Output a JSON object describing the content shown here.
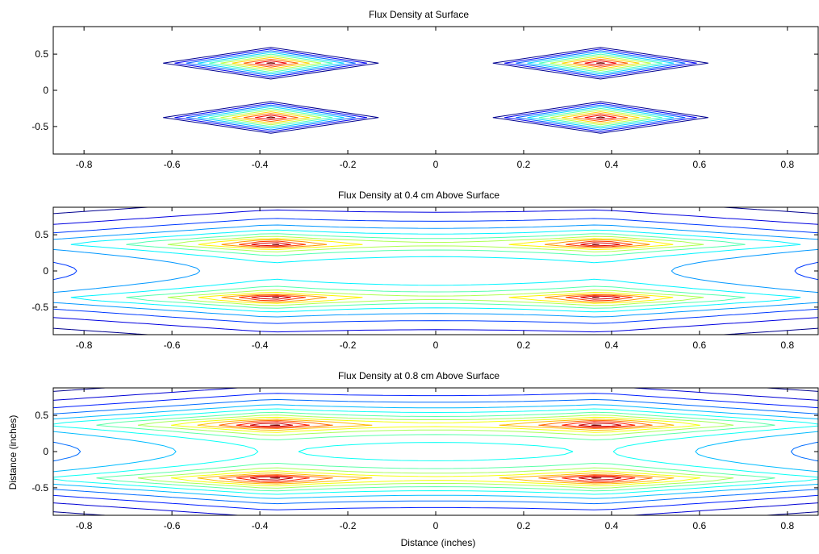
{
  "figure": {
    "xlabel": "Distance (inches)",
    "ylabel": "Distance (inches)"
  },
  "chart_data": [
    {
      "type": "contour",
      "title": "Flux Density at Surface",
      "height_above_surface_cm": 0,
      "xlim": [
        -0.87,
        0.87
      ],
      "ylim": [
        -0.88,
        0.88
      ],
      "xticks": [
        -0.8,
        -0.6,
        -0.4,
        -0.2,
        0,
        0.2,
        0.4,
        0.6,
        0.8
      ],
      "xtick_labels": [
        "-0.8",
        "-0.6",
        "-0.4",
        "-0.2",
        "0",
        "0.2",
        "0.4",
        "0.6",
        "0.8"
      ],
      "yticks": [
        -0.5,
        0,
        0.5
      ],
      "ytick_labels": [
        "-0.5",
        "0",
        "0.5"
      ],
      "sources": [
        [
          -0.375,
          0.375
        ],
        [
          0.375,
          0.375
        ],
        [
          -0.375,
          -0.375
        ],
        [
          0.375,
          -0.375
        ]
      ],
      "levels": 10,
      "outer_contour_half_width": [
        0.245,
        0.23
      ],
      "colormap": [
        "#00008f",
        "#0000ff",
        "#0080ff",
        "#00ffff",
        "#80ff80",
        "#ffff00",
        "#ff8000",
        "#ff0000",
        "#800000"
      ]
    },
    {
      "type": "contour",
      "title": "Flux Density at 0.4 cm Above Surface",
      "height_above_surface_cm": 0.4,
      "xlim": [
        -0.87,
        0.87
      ],
      "ylim": [
        -0.88,
        0.88
      ],
      "xticks": [
        -0.8,
        -0.6,
        -0.4,
        -0.2,
        0,
        0.2,
        0.4,
        0.6,
        0.8
      ],
      "xtick_labels": [
        "-0.8",
        "-0.6",
        "-0.4",
        "-0.2",
        "0",
        "0.2",
        "0.4",
        "0.6",
        "0.8"
      ],
      "yticks": [
        -0.5,
        0,
        0.5
      ],
      "ytick_labels": [
        "-0.5",
        "0",
        "0.5"
      ],
      "sources": [
        [
          -0.375,
          0.375
        ],
        [
          0.375,
          0.375
        ],
        [
          -0.375,
          -0.375
        ],
        [
          0.375,
          -0.375
        ]
      ],
      "levels": 12,
      "colormap": [
        "#00008f",
        "#0000ff",
        "#0080ff",
        "#00ffff",
        "#80ff80",
        "#ffff00",
        "#ff8000",
        "#ff0000",
        "#800000"
      ]
    },
    {
      "type": "contour",
      "title": "Flux Density at 0.8 cm Above Surface",
      "height_above_surface_cm": 0.8,
      "xlim": [
        -0.87,
        0.87
      ],
      "ylim": [
        -0.88,
        0.88
      ],
      "xticks": [
        -0.8,
        -0.6,
        -0.4,
        -0.2,
        0,
        0.2,
        0.4,
        0.6,
        0.8
      ],
      "xtick_labels": [
        "-0.8",
        "-0.6",
        "-0.4",
        "-0.2",
        "0",
        "0.2",
        "0.4",
        "0.6",
        "0.8"
      ],
      "yticks": [
        -0.5,
        0,
        0.5
      ],
      "ytick_labels": [
        "-0.5",
        "0",
        "0.5"
      ],
      "sources": [
        [
          -0.375,
          0.375
        ],
        [
          0.375,
          0.375
        ],
        [
          -0.375,
          -0.375
        ],
        [
          0.375,
          -0.375
        ]
      ],
      "levels": 14,
      "colormap": [
        "#00008f",
        "#0000ff",
        "#0080ff",
        "#00ffff",
        "#80ff80",
        "#ffff00",
        "#ff8000",
        "#ff0000",
        "#800000"
      ]
    }
  ]
}
